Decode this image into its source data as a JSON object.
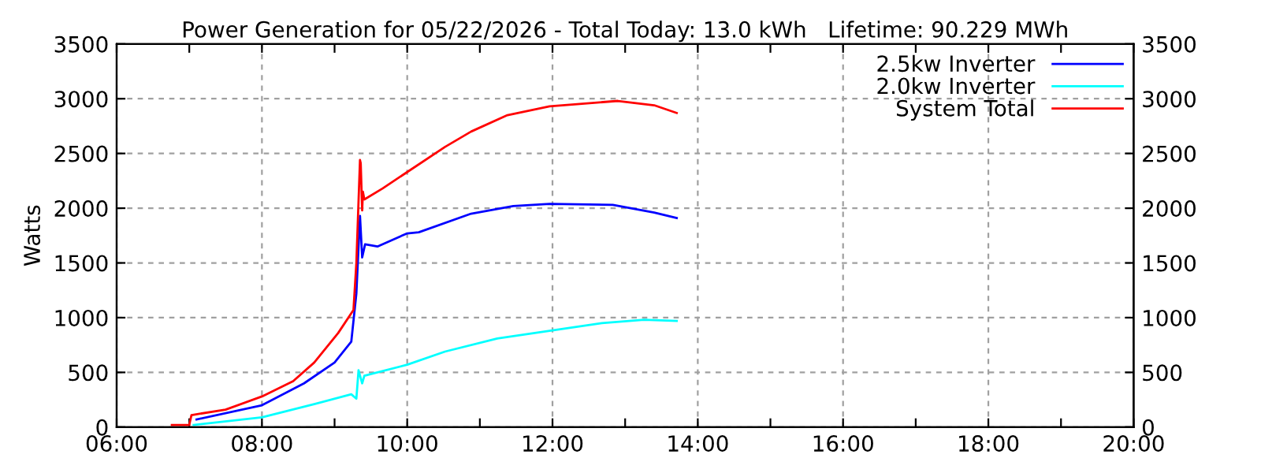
{
  "chart_data": {
    "type": "line",
    "title": "Power Generation for 05/22/2026 - Total Today: 13.0 kWh   Lifetime: 90.229 MWh",
    "ylabel": "Watts",
    "xlim": [
      6,
      20
    ],
    "xticks": [
      {
        "value": 6,
        "label": "06:00"
      },
      {
        "value": 7,
        "label": null
      },
      {
        "value": 8,
        "label": "08:00"
      },
      {
        "value": 9,
        "label": null
      },
      {
        "value": 10,
        "label": "10:00"
      },
      {
        "value": 11,
        "label": null
      },
      {
        "value": 12,
        "label": "12:00"
      },
      {
        "value": 13,
        "label": null
      },
      {
        "value": 14,
        "label": "14:00"
      },
      {
        "value": 15,
        "label": null
      },
      {
        "value": 16,
        "label": "16:00"
      },
      {
        "value": 17,
        "label": null
      },
      {
        "value": 18,
        "label": "18:00"
      },
      {
        "value": 19,
        "label": null
      },
      {
        "value": 20,
        "label": "20:00"
      }
    ],
    "ylim": [
      0,
      3500
    ],
    "yticks": [
      0,
      500,
      1000,
      1500,
      2000,
      2500,
      3000,
      3500
    ],
    "y2lim": [
      0,
      3500
    ],
    "y2ticks": [
      0,
      500,
      1000,
      1500,
      2000,
      2500,
      3000,
      3500
    ],
    "grid": true,
    "legend": "top right",
    "marker": "none",
    "line_style": "solid",
    "series": [
      {
        "name": "2.5kw Inverter",
        "color": "#0000ff",
        "x": [
          7.1,
          8.0,
          8.58,
          9.0,
          9.23,
          9.3,
          9.35,
          9.38,
          9.42,
          9.59,
          10.0,
          10.16,
          10.88,
          11.46,
          11.96,
          12.83,
          13.4,
          13.71
        ],
        "values": [
          70,
          200,
          400,
          590,
          780,
          1220,
          1930,
          1550,
          1670,
          1650,
          1770,
          1780,
          1950,
          2020,
          2040,
          2030,
          1960,
          1910
        ]
      },
      {
        "name": "2.0kw Inverter",
        "color": "#00ffff",
        "x": [
          7.06,
          8.0,
          8.72,
          9.23,
          9.3,
          9.33,
          9.38,
          9.41,
          10.0,
          10.52,
          11.24,
          11.96,
          12.68,
          13.26,
          13.71
        ],
        "values": [
          20,
          90,
          210,
          300,
          260,
          520,
          400,
          470,
          570,
          690,
          810,
          880,
          950,
          980,
          970
        ]
      },
      {
        "name": "System Total",
        "color": "#ff0000",
        "x": [
          6.76,
          7.0,
          7.03,
          7.5,
          8.0,
          8.43,
          8.72,
          9.05,
          9.26,
          9.3,
          9.35,
          9.36,
          9.38,
          9.39,
          9.41,
          9.66,
          10.0,
          10.52,
          10.88,
          11.38,
          11.96,
          12.9,
          13.4,
          13.71
        ],
        "values": [
          20,
          20,
          110,
          160,
          280,
          420,
          590,
          860,
          1070,
          1500,
          2440,
          2410,
          1980,
          2150,
          2080,
          2180,
          2330,
          2560,
          2700,
          2850,
          2930,
          2980,
          2940,
          2870
        ]
      }
    ]
  }
}
